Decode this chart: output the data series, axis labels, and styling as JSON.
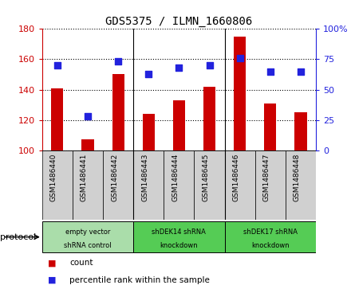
{
  "title": "GDS5375 / ILMN_1660806",
  "samples": [
    "GSM1486440",
    "GSM1486441",
    "GSM1486442",
    "GSM1486443",
    "GSM1486444",
    "GSM1486445",
    "GSM1486446",
    "GSM1486447",
    "GSM1486448"
  ],
  "counts": [
    141,
    107,
    150,
    124,
    133,
    142,
    175,
    131,
    125
  ],
  "percentiles": [
    70,
    28,
    73,
    63,
    68,
    70,
    76,
    65,
    65
  ],
  "bar_color": "#cc0000",
  "dot_color": "#2222dd",
  "ylim_left": [
    100,
    180
  ],
  "ylim_right": [
    0,
    100
  ],
  "yticks_left": [
    100,
    120,
    140,
    160,
    180
  ],
  "yticks_right": [
    0,
    25,
    50,
    75,
    100
  ],
  "ytick_labels_right": [
    "0",
    "25",
    "50",
    "75",
    "100%"
  ],
  "groups": [
    {
      "label": "empty vector\nshRNA control",
      "start": 0,
      "end": 3,
      "color": "#aaddaa"
    },
    {
      "label": "shDEK14 shRNA\nknockdown",
      "start": 3,
      "end": 6,
      "color": "#55cc55"
    },
    {
      "label": "shDEK17 shRNA\nknockdown",
      "start": 6,
      "end": 9,
      "color": "#55cc55"
    }
  ],
  "protocol_label": "protocol",
  "legend_count_label": "count",
  "legend_pct_label": "percentile rank within the sample",
  "bg_color_plot": "#ffffff",
  "xtick_bg": "#d0d0d0",
  "bg_color_fig": "#ffffff",
  "bar_width": 0.4,
  "dot_size": 40,
  "title_fontsize": 10
}
